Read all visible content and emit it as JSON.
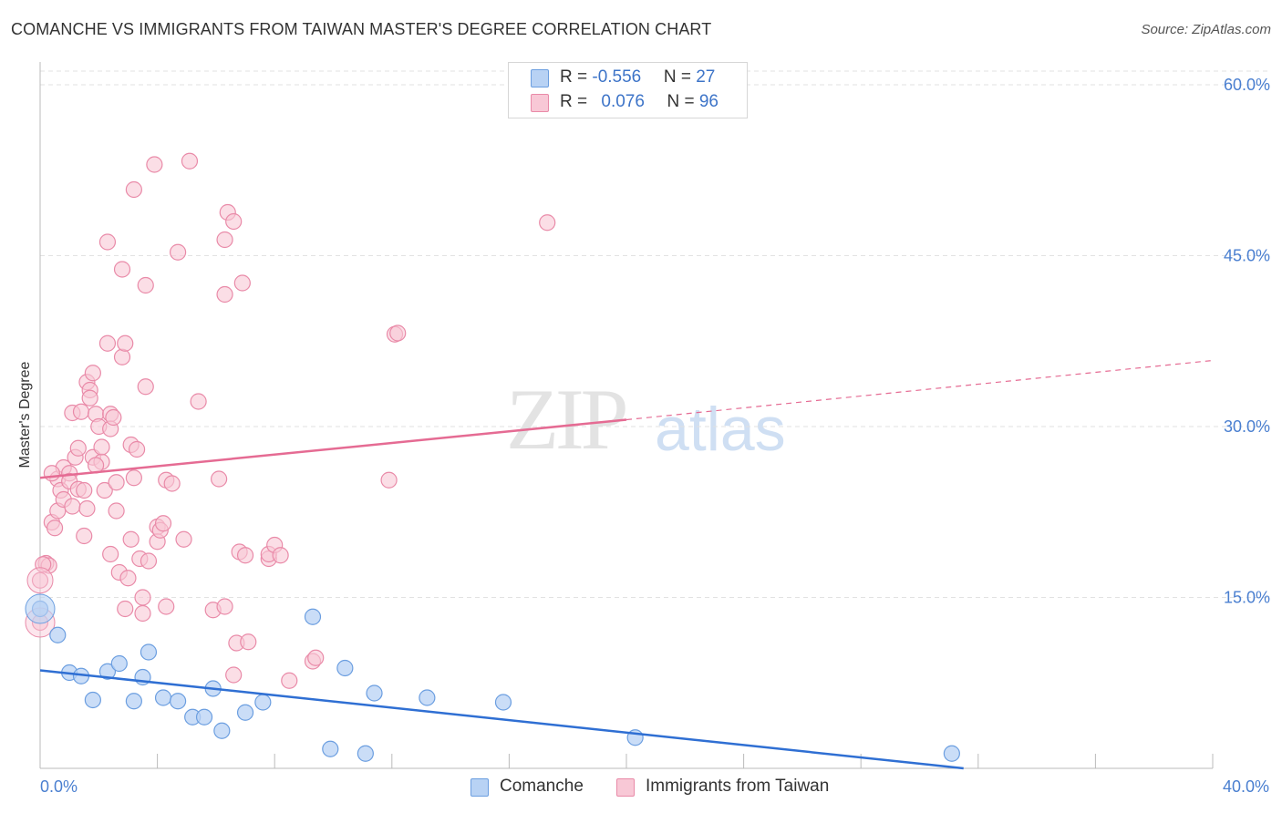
{
  "title": "COMANCHE VS IMMIGRANTS FROM TAIWAN MASTER'S DEGREE CORRELATION CHART",
  "source": "Source: ZipAtlas.com",
  "watermark": {
    "zip": "ZIP",
    "atlas": "atlas"
  },
  "legend": {
    "rows": [
      {
        "r_label": "R = ",
        "r_value": "-0.556",
        "n_label": "N = ",
        "n_value": "27"
      },
      {
        "r_label": "R = ",
        "r_value": "0.076",
        "n_label": "N = ",
        "n_value": "96"
      }
    ]
  },
  "bottom_legend": [
    "Comanche",
    "Immigrants from Taiwan"
  ],
  "colors": {
    "comanche_fill": "#b8d2f4",
    "comanche_stroke": "#6b9ee0",
    "comanche_line": "#2f6fd3",
    "taiwan_fill": "#f8c8d6",
    "taiwan_stroke": "#e98aa8",
    "taiwan_line": "#e56b93",
    "axis_label": "#4a7fd0",
    "grid": "#e2e2e2"
  },
  "chart_data": {
    "type": "scatter",
    "title": "COMANCHE VS IMMIGRANTS FROM TAIWAN MASTER'S DEGREE CORRELATION CHART",
    "xlabel": "",
    "ylabel": "Master's Degree",
    "xlim": [
      0,
      40
    ],
    "ylim": [
      0,
      62
    ],
    "x_tick_labels": [
      "0.0%",
      "40.0%"
    ],
    "y_ticks": [
      15,
      30,
      45,
      60
    ],
    "y_tick_labels": [
      "15.0%",
      "30.0%",
      "45.0%",
      "60.0%"
    ],
    "series": [
      {
        "name": "Comanche",
        "r": -0.556,
        "n": 27,
        "trend": {
          "x0": 0,
          "y0": 8.6,
          "x1": 31.5,
          "y1": 0
        },
        "points": [
          [
            0.0,
            14.0
          ],
          [
            0.6,
            11.7
          ],
          [
            1.0,
            8.4
          ],
          [
            1.4,
            8.1
          ],
          [
            1.8,
            6.0
          ],
          [
            2.3,
            8.5
          ],
          [
            2.7,
            9.2
          ],
          [
            3.2,
            5.9
          ],
          [
            3.5,
            8.0
          ],
          [
            3.7,
            10.2
          ],
          [
            4.2,
            6.2
          ],
          [
            4.7,
            5.9
          ],
          [
            5.2,
            4.5
          ],
          [
            5.6,
            4.5
          ],
          [
            5.9,
            7.0
          ],
          [
            6.2,
            3.3
          ],
          [
            7.0,
            4.9
          ],
          [
            7.6,
            5.8
          ],
          [
            9.3,
            13.3
          ],
          [
            9.9,
            1.7
          ],
          [
            10.4,
            8.8
          ],
          [
            11.1,
            1.3
          ],
          [
            11.4,
            6.6
          ],
          [
            13.2,
            6.2
          ],
          [
            15.8,
            5.8
          ],
          [
            20.3,
            2.7
          ],
          [
            31.1,
            1.3
          ]
        ]
      },
      {
        "name": "Immigrants from Taiwan",
        "r": 0.076,
        "n": 96,
        "trend": {
          "x0": 0,
          "y0": 25.5,
          "x1": 20.0,
          "y1": 30.6,
          "x2": 40,
          "y2": 35.8
        },
        "points": [
          [
            0.0,
            16.5
          ],
          [
            0.0,
            12.8
          ],
          [
            0.2,
            18.0
          ],
          [
            0.3,
            17.8
          ],
          [
            0.4,
            21.6
          ],
          [
            0.5,
            21.1
          ],
          [
            0.6,
            22.6
          ],
          [
            0.6,
            25.4
          ],
          [
            0.7,
            24.4
          ],
          [
            0.8,
            23.6
          ],
          [
            0.8,
            26.4
          ],
          [
            1.0,
            25.9
          ],
          [
            1.0,
            25.2
          ],
          [
            1.1,
            31.2
          ],
          [
            1.1,
            23.0
          ],
          [
            1.2,
            27.3
          ],
          [
            1.3,
            24.5
          ],
          [
            1.3,
            28.1
          ],
          [
            1.4,
            31.3
          ],
          [
            1.5,
            20.4
          ],
          [
            1.5,
            24.4
          ],
          [
            1.6,
            33.9
          ],
          [
            1.6,
            22.8
          ],
          [
            1.7,
            33.2
          ],
          [
            1.7,
            32.5
          ],
          [
            1.8,
            27.3
          ],
          [
            1.8,
            34.7
          ],
          [
            1.9,
            31.1
          ],
          [
            2.0,
            30.0
          ],
          [
            2.1,
            26.9
          ],
          [
            2.1,
            28.2
          ],
          [
            2.2,
            24.4
          ],
          [
            2.3,
            46.2
          ],
          [
            2.3,
            37.3
          ],
          [
            2.4,
            18.8
          ],
          [
            2.4,
            31.1
          ],
          [
            2.4,
            29.8
          ],
          [
            2.5,
            30.8
          ],
          [
            2.6,
            22.6
          ],
          [
            2.6,
            25.1
          ],
          [
            2.7,
            17.2
          ],
          [
            2.8,
            43.8
          ],
          [
            2.8,
            36.1
          ],
          [
            2.9,
            14.0
          ],
          [
            2.9,
            37.3
          ],
          [
            3.0,
            16.7
          ],
          [
            3.1,
            20.1
          ],
          [
            3.1,
            28.4
          ],
          [
            3.2,
            25.5
          ],
          [
            3.2,
            50.8
          ],
          [
            3.3,
            28.0
          ],
          [
            3.4,
            18.4
          ],
          [
            3.5,
            15.0
          ],
          [
            3.5,
            13.6
          ],
          [
            3.6,
            42.4
          ],
          [
            3.6,
            33.5
          ],
          [
            3.7,
            18.2
          ],
          [
            3.9,
            53.0
          ],
          [
            4.0,
            21.2
          ],
          [
            4.0,
            19.9
          ],
          [
            4.1,
            20.9
          ],
          [
            4.2,
            21.5
          ],
          [
            4.3,
            25.3
          ],
          [
            4.3,
            14.2
          ],
          [
            4.5,
            25.0
          ],
          [
            4.7,
            45.3
          ],
          [
            4.9,
            20.1
          ],
          [
            5.1,
            53.3
          ],
          [
            5.4,
            32.2
          ],
          [
            5.9,
            13.9
          ],
          [
            6.1,
            25.4
          ],
          [
            6.3,
            14.2
          ],
          [
            6.3,
            46.4
          ],
          [
            6.3,
            41.6
          ],
          [
            6.4,
            48.8
          ],
          [
            6.6,
            8.2
          ],
          [
            6.6,
            48.0
          ],
          [
            6.7,
            11.0
          ],
          [
            6.8,
            19.0
          ],
          [
            6.9,
            42.6
          ],
          [
            7.0,
            18.7
          ],
          [
            7.1,
            11.1
          ],
          [
            7.8,
            18.4
          ],
          [
            7.8,
            18.8
          ],
          [
            8.0,
            19.6
          ],
          [
            8.2,
            18.7
          ],
          [
            8.5,
            7.7
          ],
          [
            9.3,
            9.4
          ],
          [
            9.4,
            9.7
          ],
          [
            11.9,
            25.3
          ],
          [
            12.1,
            38.1
          ],
          [
            12.2,
            38.2
          ],
          [
            17.3,
            47.9
          ],
          [
            0.1,
            17.9
          ],
          [
            0.4,
            25.9
          ],
          [
            1.9,
            26.6
          ]
        ]
      }
    ]
  }
}
